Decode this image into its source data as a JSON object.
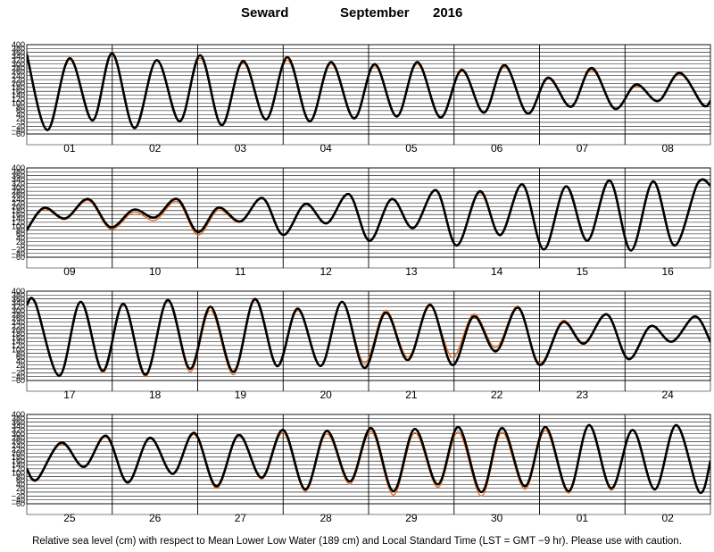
{
  "header": {
    "station": "Seward",
    "month": "September",
    "year": "2016"
  },
  "footnote": "Relative sea level (cm) with respect to Mean Lower Low Water (189 cm) and Local Standard Time (LST = GMT −9 hr). Please use with caution.",
  "colors": {
    "observed": "#000000",
    "predicted": "#e06a1e",
    "grid": "#000000"
  },
  "chart_data": [
    {
      "type": "line",
      "panel": 1,
      "x_labels": [
        "01",
        "02",
        "03",
        "04",
        "05",
        "06",
        "07",
        "08"
      ],
      "yticks": [
        -60,
        -40,
        -20,
        0,
        20,
        40,
        60,
        80,
        100,
        120,
        140,
        160,
        180,
        200,
        220,
        240,
        260,
        280,
        300,
        320,
        340,
        360,
        380,
        400
      ],
      "ytick_labels": [
        "400",
        "380",
        "360",
        "340",
        "320",
        "300",
        "280",
        "260",
        "240",
        "220",
        "200",
        "180",
        "160",
        "140",
        "120",
        "100",
        "80",
        "60",
        "40",
        "20",
        "0",
        "−20",
        "−40",
        "−60"
      ],
      "ylim": [
        -60,
        400
      ],
      "days": 8,
      "series": [
        {
          "role": "observed",
          "x": [
            0.0,
            0.24,
            0.5,
            0.77,
            1.0,
            1.26,
            1.52,
            1.79,
            2.03,
            2.28,
            2.53,
            2.8,
            3.05,
            3.31,
            3.56,
            3.83,
            4.07,
            4.33,
            4.57,
            4.84,
            5.09,
            5.35,
            5.59,
            5.86,
            6.1,
            6.37,
            6.61,
            6.88,
            7.13,
            7.39,
            7.64,
            7.91,
            8.0
          ],
          "y": [
            350,
            -40,
            330,
            10,
            355,
            -30,
            320,
            5,
            345,
            -15,
            315,
            15,
            335,
            5,
            310,
            20,
            300,
            30,
            310,
            25,
            270,
            50,
            295,
            45,
            230,
            80,
            280,
            70,
            195,
            110,
            255,
            90,
            110
          ]
        },
        {
          "role": "predicted",
          "x": [
            0.0,
            0.24,
            0.5,
            0.77,
            1.0,
            1.26,
            1.52,
            1.79,
            2.03,
            2.28,
            2.53,
            2.8,
            3.05,
            3.31,
            3.56,
            3.83,
            4.07,
            4.33,
            4.57,
            4.84,
            5.09,
            5.35,
            5.59,
            5.86,
            6.1,
            6.37,
            6.61,
            6.88,
            7.13,
            7.39,
            7.64,
            7.91,
            8.0
          ],
          "y": [
            340,
            -35,
            320,
            15,
            345,
            -25,
            315,
            10,
            330,
            -10,
            305,
            20,
            320,
            10,
            300,
            25,
            290,
            35,
            300,
            30,
            262,
            55,
            285,
            50,
            222,
            85,
            270,
            72,
            188,
            108,
            248,
            95,
            105
          ]
        }
      ]
    },
    {
      "type": "line",
      "panel": 2,
      "x_labels": [
        "09",
        "10",
        "11",
        "12",
        "13",
        "14",
        "15",
        "16"
      ],
      "yticks": [
        -60,
        -40,
        -20,
        0,
        20,
        40,
        60,
        80,
        100,
        120,
        140,
        160,
        180,
        200,
        220,
        240,
        260,
        280,
        300,
        320,
        340,
        360,
        380,
        400
      ],
      "ytick_labels": [
        "400",
        "380",
        "360",
        "340",
        "320",
        "300",
        "280",
        "260",
        "240",
        "220",
        "200",
        "180",
        "160",
        "140",
        "120",
        "100",
        "80",
        "60",
        "40",
        "20",
        "0",
        "−20",
        "−40",
        "−60"
      ],
      "ylim": [
        -60,
        400
      ],
      "days": 8,
      "series": [
        {
          "role": "observed",
          "x": [
            0.0,
            0.2,
            0.45,
            0.72,
            0.98,
            1.25,
            1.5,
            1.76,
            2.0,
            2.24,
            2.5,
            2.76,
            3.0,
            3.26,
            3.51,
            3.77,
            4.01,
            4.27,
            4.52,
            4.79,
            5.03,
            5.3,
            5.54,
            5.8,
            6.05,
            6.31,
            6.56,
            6.82,
            7.07,
            7.33,
            7.58,
            7.85,
            8.0
          ],
          "y": [
            80,
            195,
            140,
            240,
            95,
            185,
            145,
            240,
            70,
            195,
            125,
            245,
            55,
            215,
            115,
            265,
            25,
            240,
            90,
            285,
            0,
            280,
            55,
            315,
            -20,
            305,
            25,
            335,
            -25,
            330,
            0,
            320,
            310
          ]
        },
        {
          "role": "predicted",
          "x": [
            0.0,
            0.2,
            0.45,
            0.72,
            0.98,
            1.25,
            1.5,
            1.76,
            2.0,
            2.24,
            2.5,
            2.76,
            3.0,
            3.26,
            3.51,
            3.77,
            4.01,
            4.27,
            4.52,
            4.79,
            5.03,
            5.3,
            5.54,
            5.8,
            6.05,
            6.31,
            6.56,
            6.82,
            7.07,
            7.33,
            7.58,
            7.85,
            8.0
          ],
          "y": [
            75,
            188,
            135,
            232,
            85,
            172,
            130,
            228,
            55,
            182,
            120,
            240,
            55,
            210,
            112,
            260,
            30,
            235,
            92,
            280,
            5,
            272,
            50,
            312,
            -18,
            300,
            28,
            330,
            -22,
            325,
            5,
            315,
            305
          ]
        }
      ]
    },
    {
      "type": "line",
      "panel": 3,
      "x_labels": [
        "17",
        "18",
        "19",
        "20",
        "21",
        "22",
        "23",
        "24"
      ],
      "yticks": [
        -60,
        -40,
        -20,
        0,
        20,
        40,
        60,
        80,
        100,
        120,
        140,
        160,
        180,
        200,
        220,
        240,
        260,
        280,
        300,
        320,
        340,
        360,
        380,
        400
      ],
      "ytick_labels": [
        "400",
        "380",
        "360",
        "340",
        "320",
        "300",
        "280",
        "260",
        "240",
        "220",
        "200",
        "180",
        "160",
        "140",
        "120",
        "100",
        "80",
        "60",
        "40",
        "20",
        "0",
        "−20",
        "−40",
        "−60"
      ],
      "ylim": [
        -60,
        400
      ],
      "days": 8,
      "series": [
        {
          "role": "observed",
          "x": [
            0.0,
            0.1,
            0.38,
            0.63,
            0.89,
            1.13,
            1.39,
            1.65,
            1.91,
            2.15,
            2.42,
            2.67,
            2.93,
            3.17,
            3.44,
            3.69,
            3.95,
            4.2,
            4.46,
            4.72,
            4.98,
            5.23,
            5.49,
            5.75,
            6.0,
            6.27,
            6.52,
            6.79,
            7.04,
            7.3,
            7.55,
            7.82,
            8.0
          ],
          "y": [
            330,
            340,
            -35,
            345,
            -10,
            335,
            -30,
            355,
            0,
            320,
            -15,
            360,
            15,
            310,
            15,
            345,
            5,
            290,
            45,
            330,
            20,
            270,
            90,
            315,
            20,
            240,
            130,
            280,
            50,
            220,
            140,
            270,
            140
          ]
        },
        {
          "role": "predicted",
          "x": [
            0.0,
            0.1,
            0.38,
            0.63,
            0.89,
            1.13,
            1.39,
            1.65,
            1.91,
            2.15,
            2.42,
            2.67,
            2.93,
            3.17,
            3.44,
            3.69,
            3.95,
            4.2,
            4.46,
            4.72,
            4.98,
            5.23,
            5.49,
            5.75,
            6.0,
            6.27,
            6.52,
            6.79,
            7.04,
            7.3,
            7.55,
            7.82,
            8.0
          ],
          "y": [
            320,
            335,
            -40,
            340,
            -20,
            328,
            -40,
            348,
            -15,
            302,
            -30,
            352,
            10,
            300,
            20,
            342,
            30,
            302,
            60,
            322,
            60,
            282,
            110,
            322,
            30,
            248,
            135,
            284,
            55,
            222,
            138,
            272,
            135
          ]
        }
      ]
    },
    {
      "type": "line",
      "panel": 4,
      "x_labels": [
        "25",
        "26",
        "27",
        "28",
        "29",
        "30",
        "01",
        "02"
      ],
      "yticks": [
        -60,
        -40,
        -20,
        0,
        20,
        40,
        60,
        80,
        100,
        120,
        140,
        160,
        180,
        200,
        220,
        240,
        260,
        280,
        300,
        320,
        340,
        360,
        380,
        400
      ],
      "ytick_labels": [
        "400",
        "380",
        "360",
        "340",
        "320",
        "300",
        "280",
        "260",
        "240",
        "220",
        "200",
        "180",
        "160",
        "140",
        "120",
        "100",
        "80",
        "60",
        "40",
        "20",
        "0",
        "−20",
        "−40",
        "−60"
      ],
      "ylim": [
        -60,
        400
      ],
      "days": 8,
      "series": [
        {
          "role": "observed",
          "x": [
            0.0,
            0.12,
            0.4,
            0.67,
            0.93,
            1.18,
            1.44,
            1.71,
            1.96,
            2.22,
            2.48,
            2.75,
            3.0,
            3.26,
            3.51,
            3.78,
            4.03,
            4.29,
            4.54,
            4.81,
            5.05,
            5.32,
            5.56,
            5.83,
            6.07,
            6.34,
            6.58,
            6.84,
            7.09,
            7.35,
            7.6,
            7.87,
            8.0
          ],
          "y": [
            120,
            65,
            255,
            130,
            290,
            50,
            280,
            95,
            305,
            30,
            295,
            75,
            320,
            15,
            315,
            55,
            330,
            5,
            325,
            40,
            335,
            0,
            330,
            30,
            335,
            5,
            345,
            20,
            320,
            15,
            345,
            0,
            160
          ]
        },
        {
          "role": "predicted",
          "x": [
            0.0,
            0.12,
            0.4,
            0.67,
            0.93,
            1.18,
            1.44,
            1.71,
            1.96,
            2.22,
            2.48,
            2.75,
            3.0,
            3.26,
            3.51,
            3.78,
            4.03,
            4.29,
            4.54,
            4.81,
            5.05,
            5.32,
            5.56,
            5.83,
            6.07,
            6.34,
            6.58,
            6.84,
            7.09,
            7.35,
            7.6,
            7.87,
            8.0
          ],
          "y": [
            115,
            60,
            248,
            128,
            282,
            45,
            275,
            90,
            296,
            20,
            288,
            68,
            306,
            5,
            300,
            42,
            312,
            -15,
            305,
            25,
            310,
            -20,
            308,
            15,
            318,
            -5,
            340,
            10,
            318,
            10,
            340,
            0,
            155
          ]
        }
      ]
    }
  ]
}
